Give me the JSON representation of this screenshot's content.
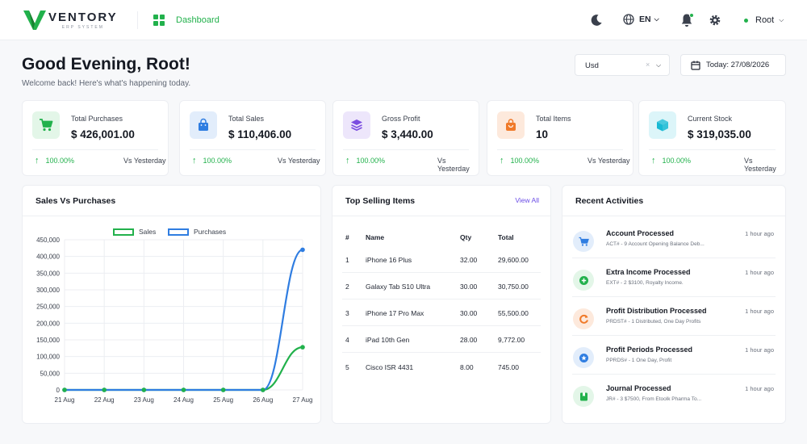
{
  "brand": {
    "name": "VENTORY",
    "tagline": "ERP SYSTEM"
  },
  "nav": {
    "dashboard_label": "Dashboard"
  },
  "header": {
    "language": "EN",
    "user_name": "Root"
  },
  "greeting": {
    "title": "Good Evening, Root!",
    "subtitle": "Welcome back! Here's what's happening today."
  },
  "currency_select": {
    "value": "Usd"
  },
  "date": {
    "label": "Today: 27/08/2026"
  },
  "stats": [
    {
      "title": "Total Purchases",
      "value": "$ 426,001.00",
      "change": "100.00%",
      "compare": "Vs Yesterday",
      "icon": "cart-icon",
      "color": "#22b14c",
      "bg": "#e3f6e8"
    },
    {
      "title": "Total Sales",
      "value": "$ 110,406.00",
      "change": "100.00%",
      "compare": "Vs Yesterday",
      "icon": "shopping-bag-icon",
      "color": "#2f7de1",
      "bg": "#e2edfb"
    },
    {
      "title": "Gross Profit",
      "value": "$ 3,440.00",
      "change": "100.00%",
      "compare": "Vs Yesterday",
      "icon": "stack-icon",
      "color": "#7b4de0",
      "bg": "#ede6fb"
    },
    {
      "title": "Total Items",
      "value": "10",
      "change": "100.00%",
      "compare": "Vs Yesterday",
      "icon": "bag-icon",
      "color": "#f07a2a",
      "bg": "#fde9dc"
    },
    {
      "title": "Current Stock",
      "value": "$ 319,035.00",
      "change": "100.00%",
      "compare": "Vs Yesterday",
      "icon": "box-icon",
      "color": "#18b9d4",
      "bg": "#dcf5f9"
    }
  ],
  "sales_chart": {
    "title": "Sales Vs Purchases",
    "chart_data": {
      "type": "line",
      "x": [
        "21 Aug",
        "22 Aug",
        "23 Aug",
        "24 Aug",
        "25 Aug",
        "26 Aug",
        "27 Aug"
      ],
      "series": [
        {
          "name": "Sales",
          "values": [
            0,
            0,
            0,
            0,
            0,
            0,
            128000
          ],
          "color": "#22b14c"
        },
        {
          "name": "Purchases",
          "values": [
            0,
            0,
            0,
            0,
            0,
            0,
            420000
          ],
          "color": "#2f7de1"
        }
      ],
      "y_ticks": [
        "0",
        "50,000",
        "100,000",
        "150,000",
        "200,000",
        "250,000",
        "300,000",
        "350,000",
        "400,000",
        "450,000"
      ],
      "ylim": [
        0,
        450000
      ],
      "grid": true,
      "legend": "top"
    }
  },
  "top_selling": {
    "title": "Top Selling Items",
    "view_all": "View All",
    "columns": [
      "#",
      "Name",
      "Qty",
      "Total"
    ],
    "rows": [
      [
        "1",
        "iPhone 16 Plus",
        "32.00",
        "29,600.00"
      ],
      [
        "2",
        "Galaxy Tab S10 Ultra",
        "30.00",
        "30,750.00"
      ],
      [
        "3",
        "iPhone 17 Pro Max",
        "30.00",
        "55,500.00"
      ],
      [
        "4",
        "iPad 10th Gen",
        "28.00",
        "9,772.00"
      ],
      [
        "5",
        "Cisco ISR 4431",
        "8.00",
        "745.00"
      ]
    ]
  },
  "activities": {
    "title": "Recent Activities",
    "items": [
      {
        "title": "Account Processed",
        "sub": "ACT# - 9 Account Opening Balance Deb...",
        "time": "1 hour ago",
        "icon": "card-icon",
        "color": "#2f7de1",
        "bg": "#e2edfb"
      },
      {
        "title": "Extra Income Processed",
        "sub": "EXT# - 2 $3100, Royalty Income.",
        "time": "1 hour ago",
        "icon": "plus-circle-icon",
        "color": "#22b14c",
        "bg": "#e3f6e8"
      },
      {
        "title": "Profit Distribution Processed",
        "sub": "PRDST# - 1 Distributed, One Day Profits",
        "time": "1 hour ago",
        "icon": "refresh-icon",
        "color": "#f07a2a",
        "bg": "#fde9dc"
      },
      {
        "title": "Profit Periods Processed",
        "sub": "PPRDS# - 1 One Day, Profit",
        "time": "1 hour ago",
        "icon": "star-icon",
        "color": "#2f7de1",
        "bg": "#e2edfb"
      },
      {
        "title": "Journal Processed",
        "sub": "JR# - 3 $7500, From Etoolk Pharma To...",
        "time": "1 hour ago",
        "icon": "journal-icon",
        "color": "#22b14c",
        "bg": "#e3f6e8"
      }
    ]
  }
}
